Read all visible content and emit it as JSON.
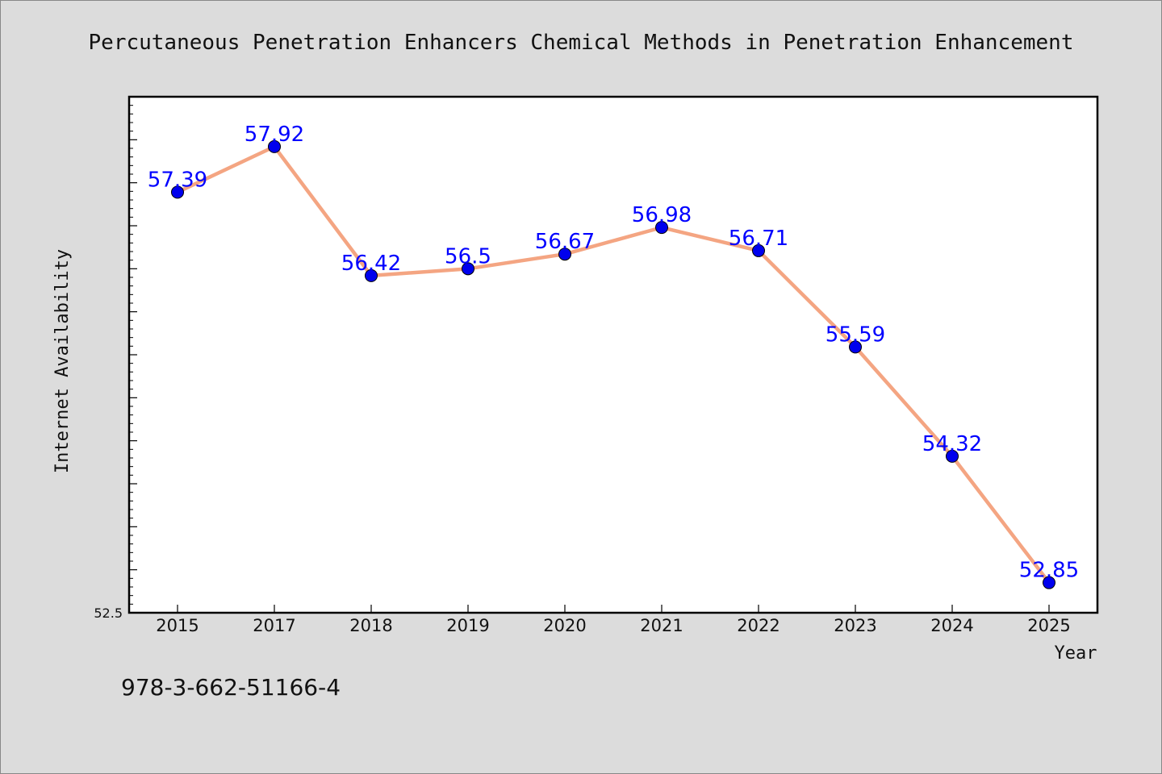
{
  "chart_data": {
    "type": "line",
    "title": "Percutaneous Penetration Enhancers Chemical Methods in Penetration Enhancement",
    "xlabel": "Year",
    "ylabel": "Internet Availability",
    "categories": [
      "2015",
      "2017",
      "2018",
      "2019",
      "2020",
      "2021",
      "2022",
      "2023",
      "2024",
      "2025"
    ],
    "series": [
      {
        "values": [
          57.39,
          57.92,
          56.42,
          56.5,
          56.67,
          56.98,
          56.71,
          55.59,
          54.32,
          52.85
        ]
      }
    ],
    "data_labels": [
      "57.39",
      "57.92",
      "56.42",
      "56.5",
      "56.67",
      "56.98",
      "56.71",
      "55.59",
      "54.32",
      "52.85"
    ],
    "ylim": [
      52.5,
      58.5
    ],
    "y_tick_labels": [
      "52.5"
    ],
    "grid": false,
    "line_color": "#f4a582",
    "marker_color": "#0000ee",
    "label_color": "#0000ff"
  },
  "footnote": "978-3-662-51166-4"
}
